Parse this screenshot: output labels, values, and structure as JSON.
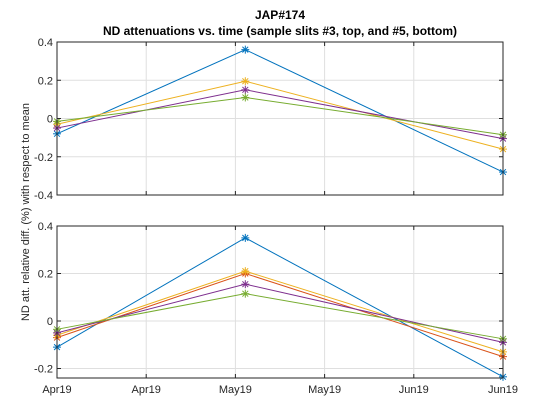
{
  "figure": {
    "title_line1": "JAP#174",
    "title_line2": "ND attenuations vs. time (sample slits #3, top, and #5, bottom)",
    "ylabel": "ND att. relative diff. (%) with respect to mean"
  },
  "chart_data": [
    {
      "type": "line",
      "panel": "top",
      "title": "",
      "xlabel": "",
      "ylabel": "",
      "x": [
        "2019-04-01",
        "2019-05-09",
        "2019-06-30"
      ],
      "ylim": [
        -0.4,
        0.4
      ],
      "yticks": [
        -0.4,
        -0.2,
        0,
        0.2,
        0.4
      ],
      "ytick_labels": [
        "-0.4",
        "-0.2",
        "0",
        "0.2",
        "0.4"
      ],
      "xticks_show_labels": false,
      "grid": true,
      "marker": "*",
      "series": [
        {
          "color": "#0072bd",
          "values": [
            -0.08,
            0.36,
            -0.28
          ]
        },
        {
          "color": "#edb120",
          "values": [
            -0.03,
            0.195,
            -0.16
          ]
        },
        {
          "color": "#7e2f8e",
          "values": [
            -0.05,
            0.15,
            -0.105
          ]
        },
        {
          "color": "#77ac30",
          "values": [
            -0.015,
            0.11,
            -0.085
          ]
        }
      ]
    },
    {
      "type": "line",
      "panel": "bottom",
      "title": "",
      "xlabel": "",
      "ylabel": "",
      "x": [
        "2019-04-01",
        "2019-05-09",
        "2019-06-30"
      ],
      "ylim": [
        -0.24,
        0.4
      ],
      "yticks": [
        -0.2,
        0,
        0.2,
        0.4
      ],
      "ytick_labels": [
        "-0.2",
        "0",
        "0.2",
        "0.4"
      ],
      "xticks_show_labels": true,
      "grid": true,
      "marker": "*",
      "series": [
        {
          "color": "#0072bd",
          "values": [
            -0.11,
            0.35,
            -0.235
          ]
        },
        {
          "color": "#d95319",
          "values": [
            -0.07,
            0.2,
            -0.15
          ]
        },
        {
          "color": "#edb120",
          "values": [
            -0.06,
            0.21,
            -0.13
          ]
        },
        {
          "color": "#7e2f8e",
          "values": [
            -0.05,
            0.155,
            -0.09
          ]
        },
        {
          "color": "#77ac30",
          "values": [
            -0.035,
            0.115,
            -0.075
          ]
        }
      ]
    }
  ],
  "x_axis": {
    "range": [
      "2019-04-01",
      "2019-06-30"
    ],
    "ticks": [
      "2019-04-01",
      "2019-04-19",
      "2019-05-07",
      "2019-05-25",
      "2019-06-12",
      "2019-06-30"
    ],
    "tick_labels": [
      "Apr19",
      "Apr19",
      "May19",
      "May19",
      "Jun19",
      "Jun19"
    ]
  }
}
